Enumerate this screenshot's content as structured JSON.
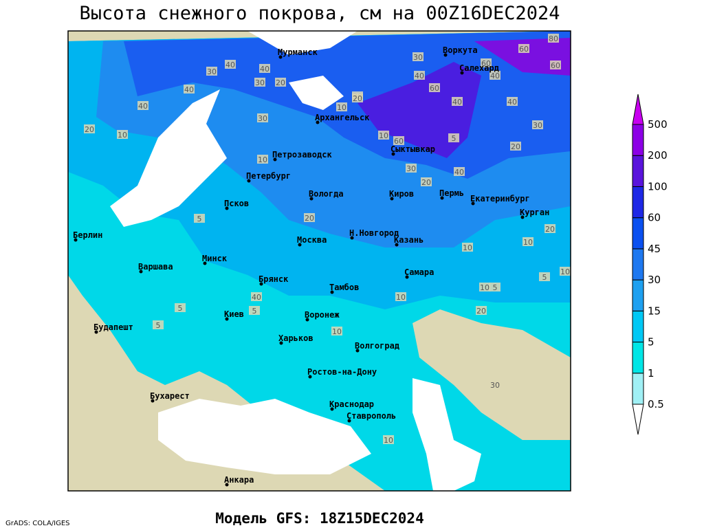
{
  "header": {
    "title": "Высота снежного покрова, см на 00Z16DEC2024"
  },
  "footer": {
    "model": "Модель GFS: 18Z15DEC2024",
    "credit": "GrADS: COLA/IGES"
  },
  "cities": [
    "Мурманск",
    "Воркута",
    "Салехард",
    "Архангельск",
    "Сыктывкар",
    "Петрозаводск",
    "Петербург",
    "Вологда",
    "Киров",
    "Пермь",
    "Екатеринбург",
    "Курган",
    "Псков",
    "Берлин",
    "Н.Новгород",
    "Казань",
    "Москва",
    "Варшава",
    "Минск",
    "Самара",
    "Брянск",
    "Тамбов",
    "Киев",
    "Воронеж",
    "Будапешт",
    "Харьков",
    "Волгоград",
    "Ростов-на-Дону",
    "Бухарест",
    "Краснодар",
    "Ставрополь",
    "Анкара"
  ],
  "contour_labels": [
    "40",
    "30",
    "40",
    "20",
    "30",
    "40",
    "40",
    "30",
    "20",
    "10",
    "20",
    "10",
    "80",
    "60",
    "60",
    "60",
    "40",
    "60",
    "40",
    "30",
    "20",
    "40",
    "30",
    "30",
    "20",
    "40",
    "10",
    "20",
    "20",
    "5",
    "20",
    "10",
    "10",
    "5",
    "10",
    "5",
    "10",
    "5",
    "20",
    "5",
    "10",
    "5",
    "10",
    "40",
    "30",
    "40",
    "60",
    "5",
    "10",
    "10"
  ],
  "legend": {
    "levels": [
      0.5,
      1,
      5,
      15,
      30,
      45,
      60,
      100,
      200,
      500
    ],
    "colors": [
      "#ffffff",
      "#a0f0f5",
      "#00e6e6",
      "#00c8f5",
      "#1ea0f0",
      "#1e78f0",
      "#0a50f0",
      "#1e28e6",
      "#5a14dc",
      "#8c00e6",
      "#c800f0"
    ]
  }
}
